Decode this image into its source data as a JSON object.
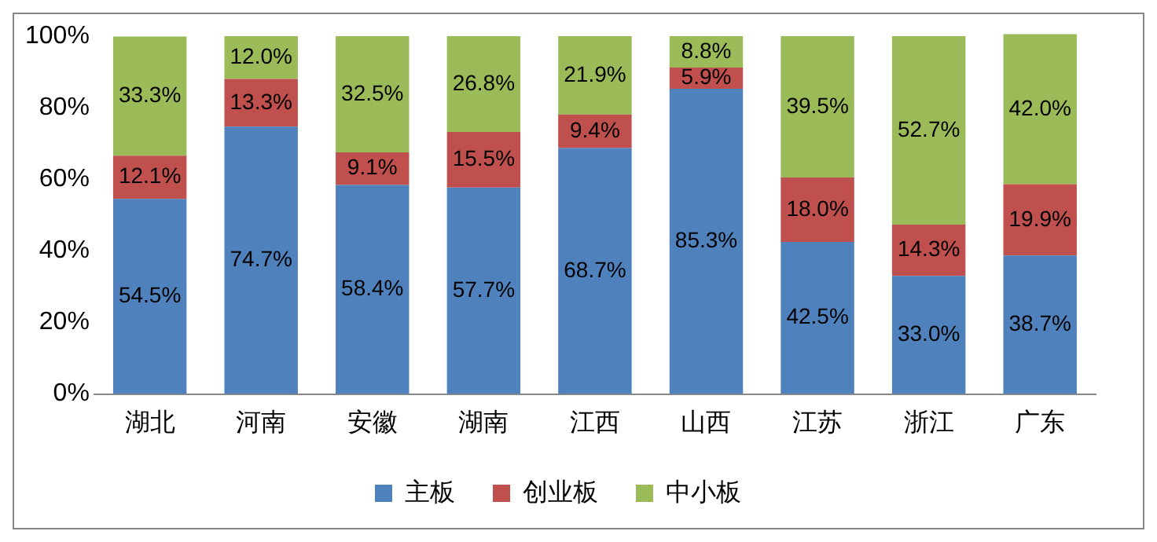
{
  "chart_data": {
    "type": "bar",
    "stacked": true,
    "categories": [
      "湖北",
      "河南",
      "安徽",
      "湖南",
      "江西",
      "山西",
      "江苏",
      "浙江",
      "广东"
    ],
    "series": [
      {
        "name": "主板",
        "color": "#4f81bd",
        "values": [
          54.5,
          74.7,
          58.4,
          57.7,
          68.7,
          85.3,
          42.5,
          33.0,
          38.7
        ],
        "value_labels": [
          "54.5%",
          "74.7%",
          "58.4%",
          "57.7%",
          "68.7%",
          "85.3%",
          "42.5%",
          "33.0%",
          "38.7%"
        ]
      },
      {
        "name": "创业板",
        "color": "#c0504d",
        "values": [
          12.1,
          13.3,
          9.1,
          15.5,
          9.4,
          5.9,
          18.0,
          14.3,
          19.9
        ],
        "value_labels": [
          "12.1%",
          "13.3%",
          "9.1%",
          "15.5%",
          "9.4%",
          "5.9%",
          "18.0%",
          "14.3%",
          "19.9%"
        ]
      },
      {
        "name": "中小板",
        "color": "#9bbb59",
        "values": [
          33.3,
          12.0,
          32.5,
          26.8,
          21.9,
          8.8,
          39.5,
          52.7,
          42.0
        ],
        "value_labels": [
          "33.3%",
          "12.0%",
          "32.5%",
          "26.8%",
          "21.9%",
          "8.8%",
          "39.5%",
          "52.7%",
          "42.0%"
        ]
      }
    ],
    "ylim": [
      0,
      100.6
    ],
    "yticks": [
      {
        "value": 0,
        "label": "0%"
      },
      {
        "value": 20,
        "label": "20%"
      },
      {
        "value": 40,
        "label": "40%"
      },
      {
        "value": 60,
        "label": "60%"
      },
      {
        "value": 80,
        "label": "80%"
      },
      {
        "value": 100,
        "label": "100%"
      }
    ],
    "grid": false,
    "legend": "bottom"
  }
}
